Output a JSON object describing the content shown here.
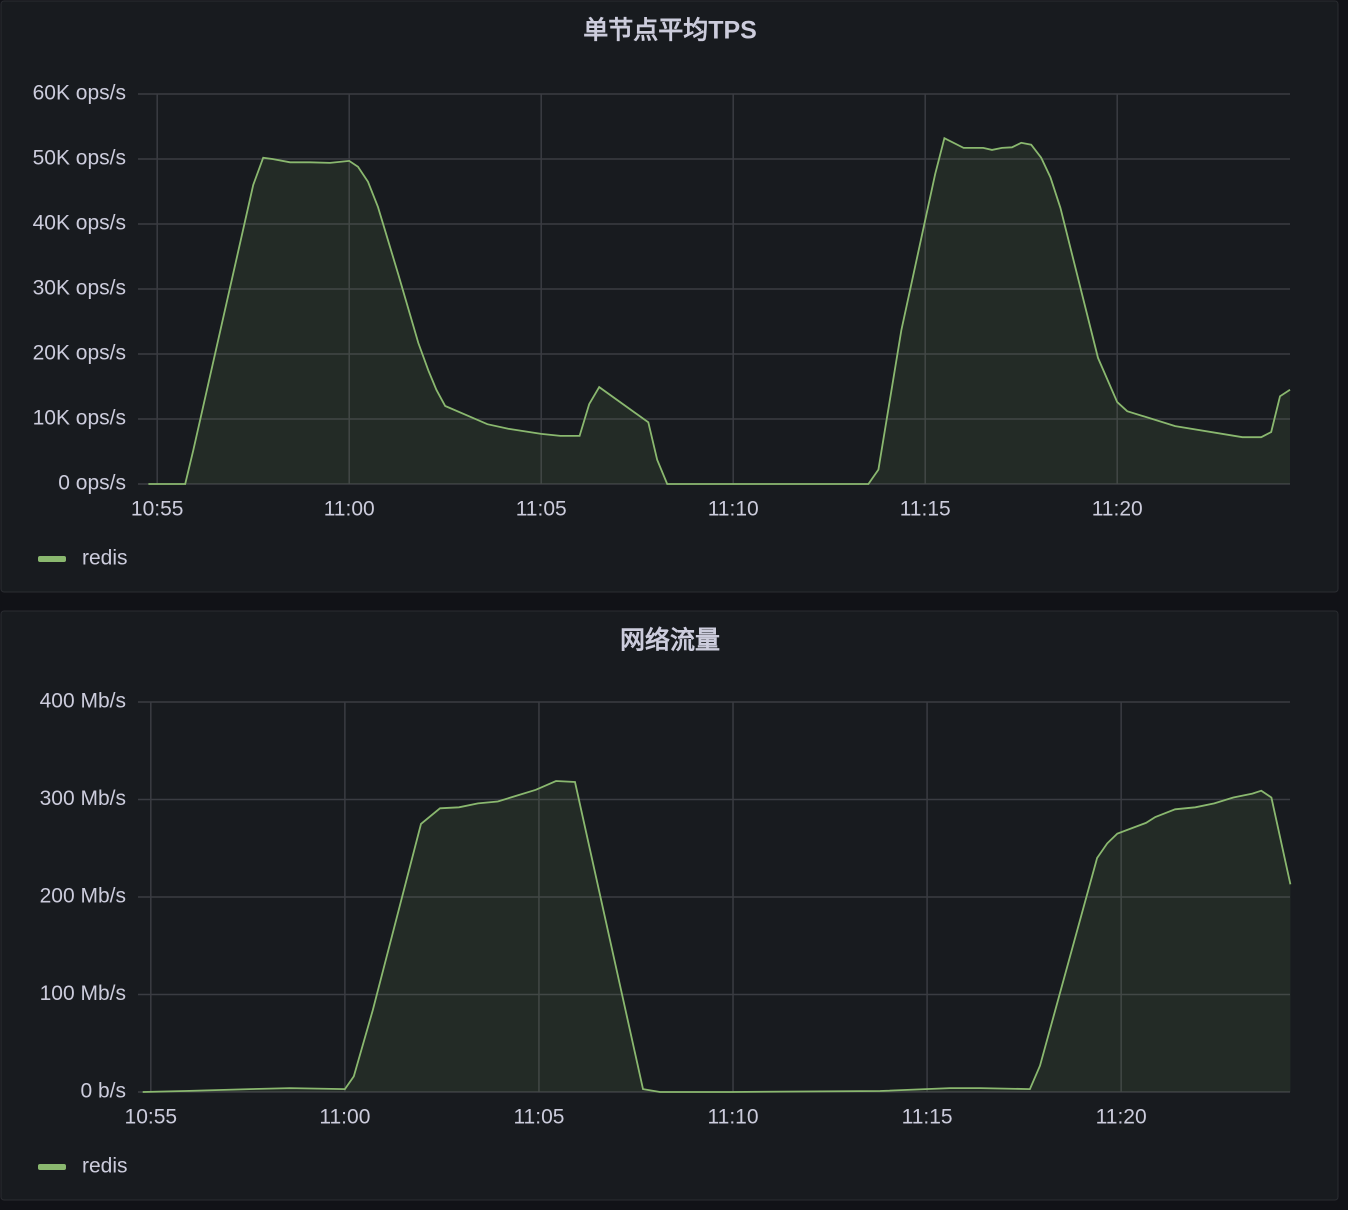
{
  "chart_data": [
    {
      "type": "line",
      "title": "单节点平均TPS",
      "x": [
        654.77,
        655.73,
        655.94,
        657.5,
        657.76,
        658.0,
        658.46,
        658.98,
        659.5,
        660,
        660.23,
        660.49,
        660.75,
        661.28,
        661.8,
        662.06,
        662.27,
        662.5,
        663.05,
        663.6,
        664.14,
        665,
        665.5,
        666,
        666.25,
        666.51,
        667.79,
        668.02,
        668.28,
        673.52,
        673.78,
        674.38,
        675,
        675.26,
        675.5,
        676,
        676.51,
        676.74,
        677,
        677.26,
        677.5,
        677.76,
        678.02,
        678.26,
        678.52,
        679.5,
        680,
        680.26,
        681.51,
        683.26,
        683.75,
        684.01,
        684.24,
        684.5
      ],
      "series": [
        {
          "name": "redis",
          "color": "#8ab86f",
          "values": [
            0,
            0,
            5200,
            46000,
            50200,
            50000,
            49500,
            49500,
            49400,
            49700,
            48800,
            46500,
            42600,
            32200,
            21700,
            17500,
            14500,
            12000,
            10600,
            9200,
            8500,
            7700,
            7400,
            7400,
            12300,
            14900,
            9500,
            3700,
            0,
            0,
            2200,
            23700,
            40600,
            47700,
            53200,
            51700,
            51700,
            51400,
            51700,
            51800,
            52500,
            52200,
            50200,
            47200,
            42500,
            19400,
            12600,
            11200,
            8900,
            7200,
            7200,
            8000,
            13500,
            14500
          ]
        }
      ],
      "xlim": [
        654.5,
        684.5
      ],
      "xticks": [
        {
          "value": 655,
          "label": "10:55"
        },
        {
          "value": 660,
          "label": "11:00"
        },
        {
          "value": 665,
          "label": "11:05"
        },
        {
          "value": 670,
          "label": "11:10"
        },
        {
          "value": 675,
          "label": "11:15"
        },
        {
          "value": 680,
          "label": "11:20"
        }
      ],
      "ylim": [
        0,
        60000
      ],
      "yticks": [
        {
          "value": 0,
          "label": "0 ops/s"
        },
        {
          "value": 10000,
          "label": "10K ops/s"
        },
        {
          "value": 20000,
          "label": "20K ops/s"
        },
        {
          "value": 30000,
          "label": "30K ops/s"
        },
        {
          "value": 40000,
          "label": "40K ops/s"
        },
        {
          "value": 50000,
          "label": "50K ops/s"
        },
        {
          "value": 60000,
          "label": "60K ops/s"
        }
      ],
      "grid": true,
      "legend": "bottom-left"
    },
    {
      "type": "line",
      "title": "网络流量",
      "x": [
        654.79,
        655.88,
        657.55,
        658.58,
        660,
        660.23,
        660.72,
        661.96,
        662.45,
        662.94,
        663.43,
        663.94,
        664.43,
        664.92,
        665.44,
        665.93,
        667.68,
        668.12,
        669.92,
        673.79,
        675.59,
        676.37,
        677.65,
        677.91,
        679.38,
        679.64,
        679.9,
        680.64,
        680.88,
        681.39,
        681.91,
        682.4,
        682.89,
        683.38,
        683.61,
        683.87,
        684.36
      ],
      "series": [
        {
          "name": "redis",
          "color": "#8ab86f",
          "values": [
            0,
            1,
            3,
            4,
            3,
            16,
            84,
            275,
            291,
            292,
            296,
            298,
            304,
            310,
            319,
            318,
            3,
            0,
            0,
            1,
            4,
            4,
            3,
            27,
            240,
            255,
            265,
            276,
            282,
            290,
            292,
            296,
            302,
            306,
            309,
            302,
            213
          ]
        }
      ],
      "xlim": [
        654.67,
        684.35
      ],
      "xticks": [
        {
          "value": 655,
          "label": "10:55"
        },
        {
          "value": 660,
          "label": "11:00"
        },
        {
          "value": 665,
          "label": "11:05"
        },
        {
          "value": 670,
          "label": "11:10"
        },
        {
          "value": 675,
          "label": "11:15"
        },
        {
          "value": 680,
          "label": "11:20"
        }
      ],
      "ylim": [
        0,
        400
      ],
      "yticks": [
        {
          "value": 0,
          "label": "0 b/s"
        },
        {
          "value": 100,
          "label": "100 Mb/s"
        },
        {
          "value": 200,
          "label": "200 Mb/s"
        },
        {
          "value": 300,
          "label": "300 Mb/s"
        },
        {
          "value": 400,
          "label": "400 Mb/s"
        }
      ],
      "grid": true,
      "legend": "bottom-left"
    }
  ]
}
